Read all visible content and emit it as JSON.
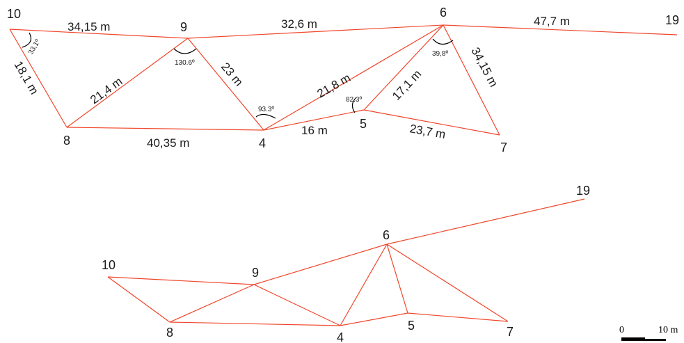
{
  "colors": {
    "edge": "#f0462a",
    "text": "#1a1a1a",
    "arc": "#000000",
    "background": "#ffffff"
  },
  "top_diagram": {
    "node_labels": {
      "n10": "10",
      "n9": "9",
      "n6": "6",
      "n19": "19",
      "n8": "8",
      "n4": "4",
      "n5": "5",
      "n7": "7"
    },
    "edge_lengths": {
      "e10_9": "34,15 m",
      "e9_6": "32,6 m",
      "e6_19": "47,7 m",
      "e10_8": "18,1 m",
      "e8_9": "21,4 m",
      "e9_4": "23 m",
      "e4_6": "21,8 m",
      "e5_6": "17,1 m",
      "e6_7": "34,15 m",
      "e8_4": "40,35 m",
      "e4_5": "16 m",
      "e5_7": "23,7 m"
    },
    "angles": {
      "a10": "33,1º",
      "a9": "130.6º",
      "a4": "93.3º",
      "a5": "82.3º",
      "a6": "39,8º"
    }
  },
  "bottom_diagram": {
    "node_labels": {
      "n10": "10",
      "n9": "9",
      "n6": "6",
      "n19": "19",
      "n8": "8",
      "n4": "4",
      "n5": "5",
      "n7": "7"
    }
  },
  "scale_bar": {
    "zero_label": "0",
    "end_label": "10 m"
  }
}
